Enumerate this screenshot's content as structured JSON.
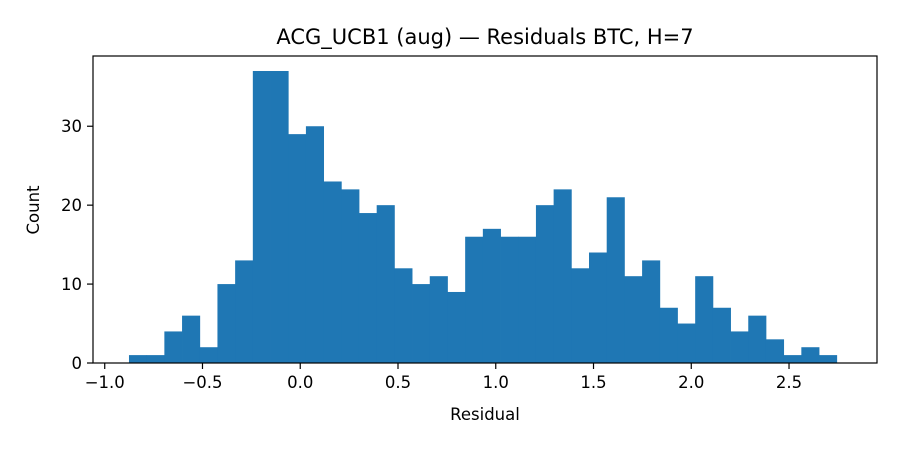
{
  "chart_data": {
    "type": "bar",
    "title": "ACG_UCB1 (aug) — Residuals BTC, H=7",
    "xlabel": "Residual",
    "ylabel": "Count",
    "bin_start": -0.876,
    "bin_width": 0.0905,
    "counts": [
      1,
      1,
      4,
      6,
      2,
      10,
      13,
      37,
      37,
      29,
      30,
      23,
      22,
      19,
      20,
      12,
      10,
      11,
      9,
      16,
      17,
      16,
      16,
      20,
      22,
      12,
      14,
      21,
      11,
      13,
      7,
      5,
      11,
      7,
      4,
      6,
      3,
      1,
      2,
      1
    ],
    "xlim": [
      -1.06,
      2.95
    ],
    "ylim": [
      0,
      38.9
    ],
    "xticks": [
      -1.0,
      -0.5,
      0.0,
      0.5,
      1.0,
      1.5,
      2.0,
      2.5
    ],
    "xtick_labels": [
      "−1.0",
      "−0.5",
      "0.0",
      "0.5",
      "1.0",
      "1.5",
      "2.0",
      "2.5"
    ],
    "yticks": [
      0,
      10,
      20,
      30
    ],
    "ytick_labels": [
      "0",
      "10",
      "20",
      "30"
    ],
    "grid": false,
    "legend": "none",
    "bar_color": "#1f77b4"
  }
}
